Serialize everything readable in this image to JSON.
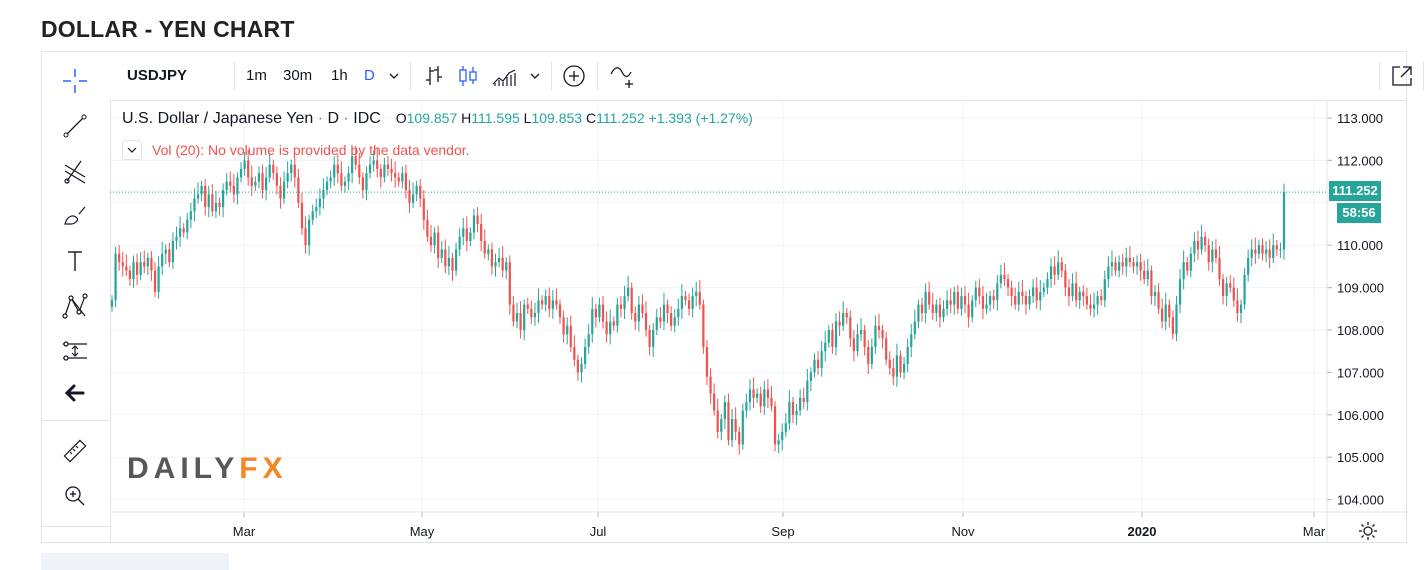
{
  "page": {
    "title": "DOLLAR - YEN CHART"
  },
  "toolbar": {
    "symbol": "USDJPY",
    "intervals": [
      "1m",
      "30m",
      "1h",
      "D"
    ],
    "active_interval": "D",
    "icons": [
      "interval-dropdown-icon",
      "bar-style-icon",
      "candle-style-icon",
      "indicators-icon",
      "indicators-dropdown-icon",
      "add-compare-icon",
      "compare-icon",
      "popout-icon",
      "snapshot-icon"
    ]
  },
  "left_toolbar": {
    "icons": [
      "crosshair-icon",
      "trend-line-icon",
      "fib-retracement-icon",
      "brush-icon",
      "text-icon",
      "pattern-icon",
      "prediction-icon",
      "back-arrow-icon",
      "ruler-icon",
      "zoom-in-icon"
    ]
  },
  "legend": {
    "name": "U.S. Dollar / Japanese Yen",
    "interval": "D",
    "source": "IDC",
    "sep": "·",
    "o_label": "O",
    "o_value": "109.857",
    "h_label": "H",
    "h_value": "111.595",
    "l_label": "L",
    "l_value": "109.853",
    "c_label": "C",
    "c_value": "111.252",
    "change": "+1.393 (+1.27%)"
  },
  "volume": {
    "text": "Vol (20): No volume is provided by the data vendor."
  },
  "price_tag": {
    "price": "111.252",
    "countdown": "58:56"
  },
  "logo": {
    "part1": "DAILY",
    "part2": "FX"
  },
  "colors": {
    "up": "#26a69a",
    "down": "#ef5350",
    "grid": "#f0f3fa",
    "axis_text": "#131722",
    "accent": "#2962ff"
  },
  "chart_data": {
    "type": "candlestick",
    "symbol": "USDJPY",
    "x_ticks": [
      "Mar",
      "May",
      "Jul",
      "Sep",
      "Nov",
      "2020",
      "Mar"
    ],
    "y_ticks": [
      104.0,
      105.0,
      106.0,
      107.0,
      108.0,
      109.0,
      110.0,
      111.0,
      112.0,
      113.0
    ],
    "y_tick_labels": [
      "104.000",
      "105.000",
      "106.000",
      "107.000",
      "108.000",
      "109.000",
      "110.000",
      "111.252",
      "112.000",
      "113.000"
    ],
    "ylim": [
      103.5,
      113.4
    ],
    "last_close": 111.252,
    "grid": true,
    "approx_closes": [
      108.7,
      109.8,
      109.6,
      109.5,
      109.4,
      109.2,
      109.6,
      109.3,
      109.6,
      109.5,
      109.7,
      109.4,
      108.9,
      109.5,
      109.8,
      109.9,
      109.6,
      110.1,
      110.2,
      110.4,
      110.3,
      110.6,
      110.8,
      111.1,
      111.2,
      111.4,
      110.9,
      111.2,
      110.8,
      111.0,
      110.9,
      111.3,
      111.5,
      111.4,
      111.2,
      111.6,
      111.8,
      112.0,
      111.6,
      111.4,
      111.5,
      111.7,
      111.3,
      111.6,
      111.9,
      111.7,
      111.4,
      111.1,
      111.5,
      111.7,
      111.9,
      111.6,
      111.0,
      110.4,
      110.0,
      110.6,
      110.8,
      110.9,
      111.1,
      111.3,
      111.5,
      111.6,
      111.9,
      111.7,
      111.4,
      111.5,
      111.7,
      112.1,
      111.9,
      111.6,
      111.3,
      111.7,
      111.9,
      112.0,
      111.8,
      111.6,
      111.9,
      111.8,
      111.7,
      111.6,
      111.5,
      111.7,
      111.3,
      111.0,
      111.2,
      111.4,
      111.1,
      110.6,
      110.2,
      110.0,
      110.3,
      109.7,
      109.9,
      109.5,
      109.7,
      109.4,
      109.9,
      110.2,
      110.4,
      110.1,
      110.3,
      110.7,
      110.5,
      110.1,
      109.8,
      109.9,
      109.5,
      109.6,
      109.7,
      109.4,
      109.6,
      108.6,
      108.2,
      108.4,
      108.0,
      108.6,
      108.5,
      108.3,
      108.4,
      108.7,
      108.6,
      108.8,
      108.5,
      108.7,
      108.6,
      108.3,
      107.9,
      108.1,
      107.6,
      107.3,
      107.0,
      107.2,
      107.6,
      107.9,
      108.5,
      108.3,
      108.6,
      108.2,
      107.9,
      108.2,
      108.1,
      108.6,
      108.5,
      108.8,
      109.0,
      108.4,
      108.2,
      108.6,
      108.4,
      108.0,
      107.6,
      108.0,
      108.3,
      108.2,
      108.6,
      108.4,
      108.1,
      108.3,
      108.5,
      108.8,
      108.7,
      108.5,
      108.8,
      108.9,
      108.6,
      107.6,
      106.9,
      106.5,
      106.1,
      105.6,
      105.9,
      106.3,
      105.4,
      105.9,
      105.6,
      105.3,
      106.1,
      106.3,
      106.6,
      106.4,
      106.5,
      106.2,
      106.6,
      106.4,
      106.2,
      105.3,
      105.4,
      105.6,
      105.8,
      106.3,
      106.0,
      106.1,
      106.4,
      106.3,
      106.8,
      107.0,
      107.3,
      107.1,
      107.5,
      107.7,
      108.0,
      107.6,
      108.2,
      108.1,
      108.4,
      108.3,
      107.8,
      107.5,
      107.9,
      108.0,
      107.6,
      107.2,
      107.6,
      108.1,
      108.0,
      107.8,
      107.3,
      107.1,
      106.9,
      107.4,
      107.0,
      107.2,
      107.6,
      107.9,
      108.2,
      108.6,
      108.4,
      108.9,
      108.6,
      108.4,
      108.6,
      108.3,
      108.5,
      108.7,
      108.6,
      108.9,
      108.5,
      108.8,
      108.6,
      108.3,
      108.7,
      109.0,
      108.8,
      108.5,
      108.6,
      108.8,
      108.7,
      109.1,
      109.3,
      109.2,
      109.0,
      108.8,
      108.6,
      108.9,
      108.8,
      108.6,
      108.8,
      109.0,
      108.7,
      108.9,
      109.0,
      109.2,
      109.5,
      109.3,
      109.6,
      109.4,
      109.0,
      108.8,
      109.1,
      108.7,
      108.9,
      108.8,
      108.6,
      108.5,
      108.6,
      108.8,
      108.7,
      109.2,
      109.5,
      109.6,
      109.4,
      109.6,
      109.5,
      109.7,
      109.6,
      109.5,
      109.6,
      109.4,
      109.2,
      109.4,
      108.8,
      108.9,
      108.5,
      108.2,
      108.6,
      108.3,
      107.9,
      108.6,
      109.2,
      109.6,
      109.4,
      109.8,
      110.1,
      109.9,
      110.2,
      110.0,
      109.6,
      109.9,
      109.7,
      109.2,
      108.8,
      109.1,
      109.0,
      108.7,
      108.4,
      108.6,
      109.3,
      109.7,
      109.9,
      109.8,
      110.0,
      109.8,
      109.9,
      109.7,
      110.0,
      109.9,
      109.9,
      111.252
    ]
  }
}
